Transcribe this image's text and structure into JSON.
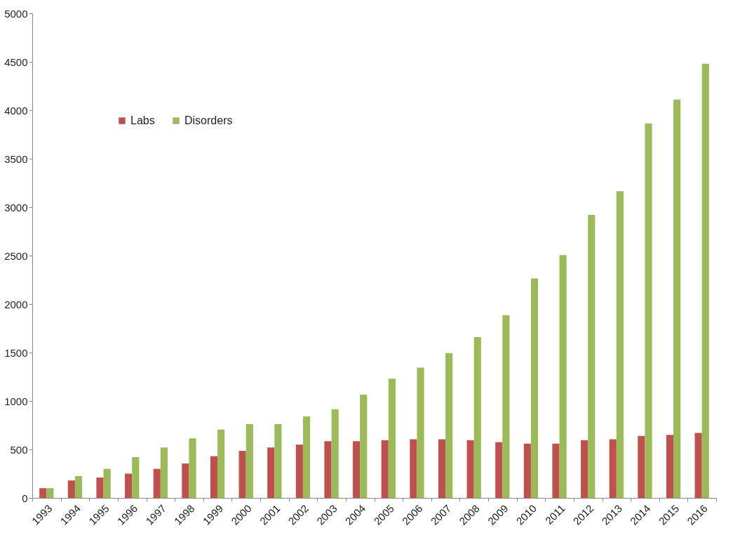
{
  "chart_data": {
    "type": "bar",
    "categories": [
      "1993",
      "1994",
      "1995",
      "1996",
      "1997",
      "1998",
      "1999",
      "2000",
      "2001",
      "2002",
      "2003",
      "2004",
      "2005",
      "2006",
      "2007",
      "2008",
      "2009",
      "2010",
      "2011",
      "2012",
      "2013",
      "2014",
      "2015",
      "2016"
    ],
    "series": [
      {
        "name": "Labs",
        "color": "#c0504d",
        "values": [
          100,
          180,
          210,
          250,
          300,
          355,
          430,
          485,
          520,
          550,
          585,
          585,
          595,
          605,
          605,
          595,
          575,
          560,
          560,
          595,
          605,
          640,
          650,
          670
        ]
      },
      {
        "name": "Disorders",
        "color": "#9bbb59",
        "values": [
          100,
          225,
          300,
          420,
          520,
          615,
          705,
          760,
          760,
          840,
          915,
          1065,
          1230,
          1345,
          1495,
          1660,
          1885,
          2265,
          2505,
          2920,
          3165,
          3865,
          4110,
          4480
        ]
      }
    ],
    "ylim": [
      0,
      5000
    ],
    "yticks": [
      0,
      500,
      1000,
      1500,
      2000,
      2500,
      3000,
      3500,
      4000,
      4500,
      5000
    ],
    "grid": false,
    "legend": "top left"
  }
}
